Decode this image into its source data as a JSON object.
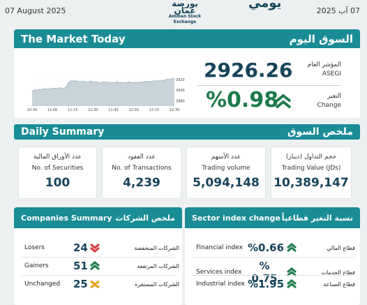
{
  "header": {
    "date_en": "07   August 2025",
    "date_ar": "07 آب 2025",
    "title_partial": "يومي",
    "logo_ar": "بورصة عمان",
    "logo_en": "Amman Stock Exchange"
  },
  "market_today": {
    "title_en": "The Market Today",
    "title_ar": "السوق اليوم",
    "index_label_ar": "المؤشر العام",
    "index_label_en": "ASEGI",
    "index_value": "2926.26",
    "change_label_ar": "التغير",
    "change_label_en": "Change",
    "change_value": "%0.98",
    "change_icon": "double-chevron-up-icon"
  },
  "chart_data": {
    "type": "area",
    "x_ticks": [
      "10:30",
      "11:00",
      "11:15",
      "11:30",
      "11:45",
      "12:00",
      "12:15",
      "12:30"
    ],
    "y_ticks": [
      "2920",
      "2900",
      "2880"
    ],
    "ylim": [
      2870,
      2928
    ],
    "x": [
      0,
      0.5,
      1,
      1.5,
      2,
      2.5,
      3,
      3.5,
      4,
      4.5,
      5,
      5.5,
      6,
      6.5,
      7,
      7.5,
      8,
      8.5,
      9,
      9.5,
      10,
      10.5,
      11,
      11.5,
      12,
      12.5,
      13,
      13.5,
      14,
      14.5,
      15,
      15.5,
      16,
      16.5,
      17,
      17.5,
      18,
      18.5,
      19,
      19.5,
      20,
      20.5,
      21,
      21.5,
      22,
      22.5,
      23,
      23.5,
      24,
      24.5,
      25,
      25.5,
      26,
      26.5,
      27,
      27.5,
      28,
      28.5,
      29,
      29.5,
      30,
      30.5,
      31,
      31.5,
      32,
      32.5,
      33,
      33.5,
      34,
      34.5,
      35,
      35.5,
      36,
      36.5,
      37,
      37.5,
      38,
      38.5,
      39,
      39.5,
      40
    ],
    "values": [
      2898,
      2900,
      2901,
      2900,
      2902,
      2901,
      2903,
      2902,
      2903,
      2902,
      2903,
      2904,
      2903,
      2904,
      2903,
      2904,
      2905,
      2903,
      2904,
      2905,
      2912,
      2916,
      2918,
      2917,
      2918,
      2917,
      2916,
      2917,
      2916,
      2917,
      2916,
      2915,
      2916,
      2917,
      2916,
      2915,
      2916,
      2915,
      2914,
      2915,
      2916,
      2915,
      2916,
      2915,
      2914,
      2915,
      2914,
      2915,
      2916,
      2914,
      2915,
      2914,
      2915,
      2914,
      2916,
      2915,
      2914,
      2915,
      2914,
      2915,
      2914,
      2916,
      2915,
      2916,
      2917,
      2916,
      2917,
      2916,
      2917,
      2918,
      2917,
      2918,
      2917,
      2919,
      2918,
      2920,
      2921,
      2920,
      2922,
      2921,
      2923
    ],
    "color": "#c9d3da",
    "line_color": "#9eb0bc"
  },
  "daily_summary": {
    "title_en": "Daily Summary",
    "title_ar": "ملخص السوق",
    "items": [
      {
        "ar": "عدد الأوراق المالية",
        "en": "No. of Securities",
        "value": "100"
      },
      {
        "ar": "عدد العقود",
        "en": "No. of Transactions",
        "value": "4,239"
      },
      {
        "ar": "عدد الأسهم",
        "en": "Trading volume",
        "value": "5,094,148"
      },
      {
        "ar": "حجم التداول (دينار)",
        "en": "Trading Value (JDs)",
        "value": "10,389,147"
      }
    ]
  },
  "companies": {
    "title_en": "Companies Summary",
    "title_ar": "ملخص الشركات",
    "rows": [
      {
        "en": "Losers",
        "value": "24",
        "ar": "الشركات المنخفضة",
        "icon": "double-chevron-down-icon",
        "color": "#d63a3a"
      },
      {
        "en": "Gainers",
        "value": "51",
        "ar": "الشركات المرتفعة",
        "icon": "double-chevron-up-icon",
        "color": "#1e7a4a"
      },
      {
        "en": "Unchanged",
        "value": "25",
        "ar": "الشركات المستقرة",
        "icon": "chevron-x-icon",
        "color": "#e3a21a"
      }
    ]
  },
  "sectors": {
    "title_en": "Sector index change",
    "title_ar": "نسبة التغير قطاعياً",
    "rows": [
      {
        "en": "Financial index",
        "value": "%0.66",
        "ar": "قطاع المالي",
        "icon": "double-chevron-up-icon"
      },
      {
        "en": "Services index",
        "value": "% 0.75",
        "ar": "قطاع الخدمات",
        "icon": "double-chevron-up-icon"
      },
      {
        "en": "Industrial index",
        "value": "%1.95",
        "ar": "قطاع الصناعة",
        "icon": "double-chevron-up-icon"
      }
    ]
  },
  "colors": {
    "accent": "#1a8c95",
    "navy": "#17445b",
    "up": "#1e7a4a",
    "down": "#d63a3a",
    "flat": "#e3a21a"
  }
}
